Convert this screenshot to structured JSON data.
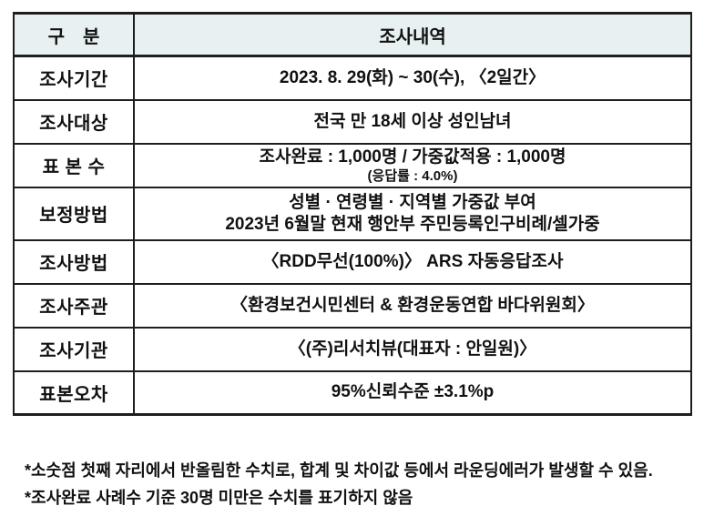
{
  "table": {
    "header": {
      "category": "구　분",
      "details": "조사내역"
    },
    "rows": [
      {
        "label": "조사기간",
        "line1": "2023. 8. 29(화) ~ 30(수), 〈2일간〉"
      },
      {
        "label": "조사대상",
        "line1": "전국 만 18세 이상 성인남녀"
      },
      {
        "label": "표 본 수",
        "line1": "조사완료 : 1,000명 / 가중값적용 : 1,000명",
        "sub": "(응답률 : 4.0%)"
      },
      {
        "label": "보정방법",
        "line1": "성별 · 연령별 · 지역별 가중값 부여",
        "line2": "2023년 6월말 현재 행안부 주민등록인구비례/셀가중"
      },
      {
        "label": "조사방법",
        "line1": "〈RDD무선(100%)〉 ARS 자동응답조사"
      },
      {
        "label": "조사주관",
        "line1": "〈환경보건시민센터 & 환경운동연합 바다위원회〉"
      },
      {
        "label": "조사기관",
        "line1": "〈(주)리서치뷰(대표자 : 안일원)〉"
      },
      {
        "label": "표본오차",
        "line1": "95%신뢰수준 ±3.1%p"
      }
    ]
  },
  "footnotes": {
    "note1": "*소숫점 첫째 자리에서 반올림한 수치로, 합계 및 차이값 등에서 라운딩에러가 발생할 수 있음.",
    "note2": "*조사완료 사례수 기준 30명 미만은 수치를 표기하지 않음"
  },
  "colors": {
    "header_bg": "#e8f1f1",
    "border": "#1e1e1e",
    "text": "#111111"
  }
}
